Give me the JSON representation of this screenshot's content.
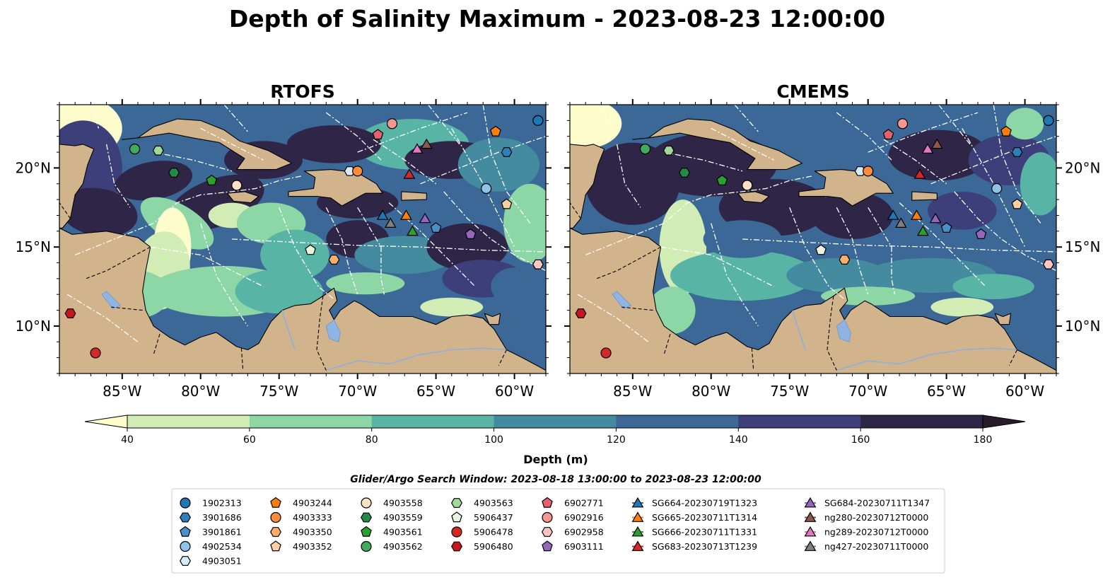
{
  "figure": {
    "title": "Depth of Salinity Maximum - 2023-08-23 12:00:00",
    "search_window": "Glider/Argo Search Window: 2023-08-18 13:00:00 to 2023-08-23 12:00:00"
  },
  "colors": {
    "land": "#d2b48c",
    "lake": "#8fb4e3",
    "palette": [
      "#fdfdcc",
      "#d1edb5",
      "#8dd6a5",
      "#58b5a5",
      "#458ba0",
      "#3b6896",
      "#3d3f7a",
      "#2e2547",
      "#271a2c"
    ]
  },
  "chart_data": {
    "type": "map",
    "panels": [
      {
        "title": "RTOFS",
        "lon_range": [
          -89,
          -58
        ],
        "lat_range": [
          7,
          24
        ],
        "ocean_base_depth": 125
      },
      {
        "title": "CMEMS",
        "lon_range": [
          -89,
          -58
        ],
        "lat_range": [
          7,
          24
        ],
        "ocean_base_depth": 130
      }
    ],
    "x_ticks": [
      {
        "value": -85,
        "label": "85°W"
      },
      {
        "value": -80,
        "label": "80°W"
      },
      {
        "value": -75,
        "label": "75°W"
      },
      {
        "value": -70,
        "label": "70°W"
      },
      {
        "value": -65,
        "label": "65°W"
      },
      {
        "value": -60,
        "label": "60°W"
      }
    ],
    "y_ticks": [
      {
        "value": 20,
        "label": "20°N"
      },
      {
        "value": 15,
        "label": "15°N"
      },
      {
        "value": 10,
        "label": "10°N"
      }
    ],
    "colorbar": {
      "label": "Depth (m)",
      "levels": [
        40,
        60,
        80,
        100,
        120,
        140,
        160,
        180
      ],
      "tick_labels": [
        "40",
        "60",
        "80",
        "100",
        "120",
        "140",
        "160",
        "180"
      ],
      "extend": "both"
    },
    "legend": {
      "columns": 7,
      "entries": [
        {
          "name": "1902313",
          "marker": "circle",
          "color": "#1f77b4",
          "lon": -58.5,
          "lat": 23
        },
        {
          "name": "3901686",
          "marker": "hexagon",
          "color": "#2c7fb8",
          "lon": -60.5,
          "lat": 21
        },
        {
          "name": "3901861",
          "marker": "pentagon",
          "color": "#4a90c8",
          "lon": -65,
          "lat": 16.2
        },
        {
          "name": "4902534",
          "marker": "circle",
          "color": "#8ec3e6",
          "lon": -61.8,
          "lat": 18.7
        },
        {
          "name": "4903051",
          "marker": "hexagon",
          "color": "#d6eaf8",
          "lon": -70.5,
          "lat": 19.8
        },
        {
          "name": "4903244",
          "marker": "pentagon",
          "color": "#ff7f0e",
          "lon": -61.2,
          "lat": 22.3
        },
        {
          "name": "4903333",
          "marker": "circle",
          "color": "#fd8d3c",
          "lon": -70,
          "lat": 19.8
        },
        {
          "name": "4903350",
          "marker": "hexagon",
          "color": "#fdae6b",
          "lon": -71.5,
          "lat": 14.2
        },
        {
          "name": "4903352",
          "marker": "pentagon",
          "color": "#fdd0a2",
          "lon": -60.5,
          "lat": 17.7
        },
        {
          "name": "4903558",
          "marker": "circle",
          "color": "#fde0c5",
          "lon": -77.7,
          "lat": 18.9
        },
        {
          "name": "4903559",
          "marker": "hexagon",
          "color": "#238b45",
          "lon": -81.7,
          "lat": 19.7
        },
        {
          "name": "4903561",
          "marker": "pentagon",
          "color": "#2ca02c",
          "lon": -79.3,
          "lat": 19.2
        },
        {
          "name": "4903562",
          "marker": "circle",
          "color": "#41ab5d",
          "lon": -84.2,
          "lat": 21.2
        },
        {
          "name": "4903563",
          "marker": "hexagon",
          "color": "#a1d99b",
          "lon": -82.7,
          "lat": 21.1
        },
        {
          "name": "5906437",
          "marker": "pentagon",
          "color": "#e5f5e0",
          "lon": -73,
          "lat": 14.8
        },
        {
          "name": "5906478",
          "marker": "circle",
          "color": "#d62728",
          "lon": -86.7,
          "lat": 8.3
        },
        {
          "name": "5906480",
          "marker": "hexagon",
          "color": "#c5171c",
          "lon": -88.3,
          "lat": 10.8
        },
        {
          "name": "6902771",
          "marker": "pentagon",
          "color": "#e7606d",
          "lon": -68.7,
          "lat": 22.1
        },
        {
          "name": "6902916",
          "marker": "circle",
          "color": "#f4978e",
          "lon": -67.8,
          "lat": 22.8
        },
        {
          "name": "6902958",
          "marker": "hexagon",
          "color": "#fcc5c0",
          "lon": -58.5,
          "lat": 13.9
        },
        {
          "name": "6903111",
          "marker": "pentagon",
          "color": "#9467bd",
          "lon": -62.8,
          "lat": 15.8
        },
        {
          "name": "SG664-20230719T1323",
          "marker": "triangle",
          "color": "#1f77b4",
          "lon": -68.4,
          "lat": 17
        },
        {
          "name": "SG665-20230711T1314",
          "marker": "triangle",
          "color": "#ff7f0e",
          "lon": -66.9,
          "lat": 17
        },
        {
          "name": "SG666-20230711T1331",
          "marker": "triangle",
          "color": "#2ca02c",
          "lon": -66.5,
          "lat": 16
        },
        {
          "name": "SG683-20230713T1239",
          "marker": "triangle",
          "color": "#d62728",
          "lon": -66.7,
          "lat": 19.6
        },
        {
          "name": "SG684-20230711T1347",
          "marker": "triangle",
          "color": "#9467bd",
          "lon": -65.7,
          "lat": 16.8
        },
        {
          "name": "ng280-20230712T0000",
          "marker": "triangle",
          "color": "#8c564b",
          "lon": -65.6,
          "lat": 21.5
        },
        {
          "name": "ng289-20230712T0000",
          "marker": "triangle",
          "color": "#e377c2",
          "lon": -66.2,
          "lat": 21.2
        },
        {
          "name": "ng427-20230711T0000",
          "marker": "triangle",
          "color": "#7f7f7f",
          "lon": -67.9,
          "lat": 16.5
        }
      ]
    }
  }
}
